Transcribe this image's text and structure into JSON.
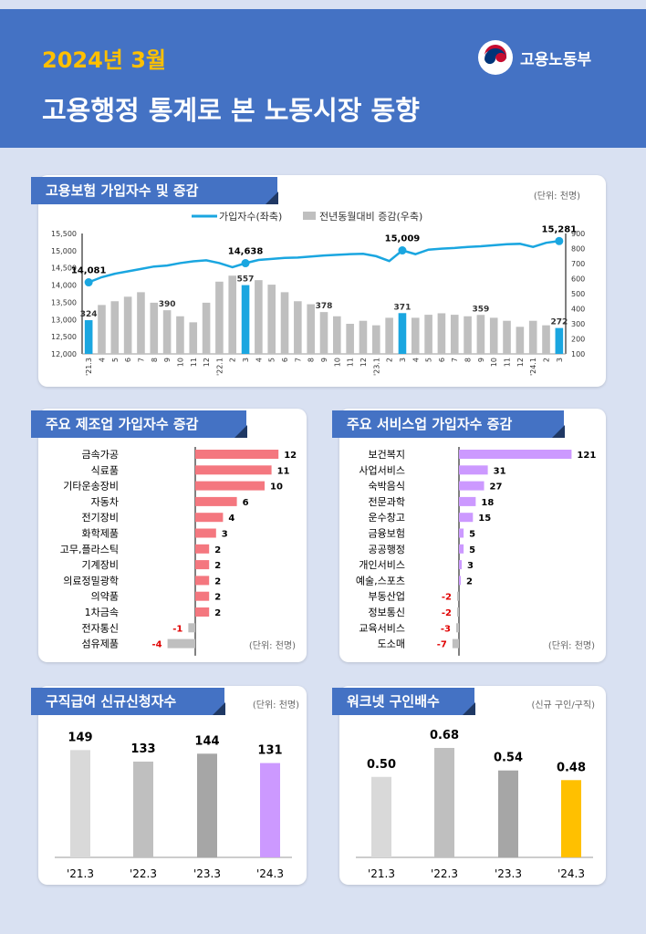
{
  "header": {
    "year_month": "2024년 3월",
    "title": "고용행정 통계로 본 노동시장 동향",
    "ministry": "고용노동부"
  },
  "colors": {
    "header_bg": "#4472c4",
    "accent_yellow": "#ffc000",
    "line_blue": "#1aa6e0",
    "bar_gray": "#bfbfbf",
    "bar_red": "#f4777f",
    "bar_purple": "#cc99ff"
  },
  "insurance": {
    "title": "고용보험 가입자수 및 증감",
    "unit": "(단위: 천명)",
    "legend_line": "가입자수(좌축)",
    "legend_bar": "전년동월대비 증감(우축)"
  },
  "manufacturing": {
    "title": "주요 제조업 가입자수 증감",
    "unit": "(단위: 천명)"
  },
  "services": {
    "title": "주요 서비스업 가입자수 증감",
    "unit": "(단위: 천명)"
  },
  "claims": {
    "title": "구직급여 신규신청자수",
    "unit": "(단위: 천명)"
  },
  "worknet": {
    "title": "워크넷 구인배수",
    "unit": "(신규 구인/구직)"
  },
  "chart_data": [
    {
      "type": "bar",
      "id": "insured",
      "title": "고용보험 가입자수 및 증감",
      "categories": [
        "'21.3",
        "4",
        "5",
        "6",
        "7",
        "8",
        "9",
        "10",
        "11",
        "12",
        "'22.1",
        "2",
        "3",
        "4",
        "5",
        "6",
        "7",
        "8",
        "9",
        "10",
        "11",
        "12",
        "'23.1",
        "2",
        "3",
        "4",
        "5",
        "6",
        "7",
        "8",
        "9",
        "10",
        "11",
        "12",
        "'24.1",
        "2",
        "3"
      ],
      "series": [
        {
          "name": "가입자수(좌축)",
          "kind": "line",
          "axis": "left",
          "values": [
            14081,
            14230,
            14330,
            14400,
            14470,
            14540,
            14570,
            14640,
            14690,
            14720,
            14640,
            14520,
            14638,
            14730,
            14760,
            14790,
            14800,
            14830,
            14860,
            14880,
            14900,
            14910,
            14840,
            14700,
            15009,
            14900,
            15030,
            15060,
            15080,
            15110,
            15130,
            15160,
            15190,
            15200,
            15110,
            15230,
            15281
          ]
        },
        {
          "name": "전년동월대비 증감(우축)",
          "kind": "bar",
          "axis": "right",
          "values": [
            324,
            425,
            450,
            480,
            510,
            440,
            390,
            350,
            310,
            440,
            580,
            620,
            557,
            590,
            560,
            510,
            450,
            430,
            378,
            350,
            300,
            320,
            290,
            340,
            371,
            340,
            360,
            370,
            360,
            350,
            359,
            340,
            320,
            280,
            320,
            290,
            272
          ],
          "highlight": [
            0,
            12,
            24,
            36
          ]
        }
      ],
      "labels_line": [
        {
          "i": 0,
          "text": "14,081"
        },
        {
          "i": 12,
          "text": "14,638"
        },
        {
          "i": 24,
          "text": "15,009"
        },
        {
          "i": 36,
          "text": "15,281"
        }
      ],
      "labels_bar": [
        {
          "i": 0,
          "text": "324"
        },
        {
          "i": 6,
          "text": "390"
        },
        {
          "i": 12,
          "text": "557"
        },
        {
          "i": 18,
          "text": "378"
        },
        {
          "i": 24,
          "text": "371"
        },
        {
          "i": 30,
          "text": "359"
        },
        {
          "i": 36,
          "text": "272"
        }
      ],
      "ylim_left": [
        12000,
        15500
      ],
      "yticks_left": [
        "12,000",
        "12,500",
        "13,000",
        "13,500",
        "14,000",
        "14,500",
        "15,000",
        "15,500"
      ],
      "ylim_right": [
        100,
        900
      ],
      "yticks_right": [
        "100",
        "200",
        "300",
        "400",
        "500",
        "600",
        "700",
        "800",
        "900"
      ]
    },
    {
      "type": "bar",
      "id": "manufacturing",
      "orientation": "horizontal",
      "categories": [
        "금속가공",
        "식료품",
        "기타운송장비",
        "자동차",
        "전기장비",
        "화학제품",
        "고무,플라스틱",
        "기계장비",
        "의료정밀광학",
        "의약품",
        "1차금속",
        "전자통신",
        "섬유제품"
      ],
      "values": [
        12,
        11,
        10,
        6,
        4,
        3,
        2,
        2,
        2,
        2,
        2,
        -1,
        -4
      ],
      "value_labels": [
        "12",
        "11",
        "10",
        "6",
        "4",
        "3",
        "2",
        "2",
        "2",
        "2",
        "2",
        "-1",
        "-4"
      ]
    },
    {
      "type": "bar",
      "id": "services",
      "orientation": "horizontal",
      "categories": [
        "보건복지",
        "사업서비스",
        "숙박음식",
        "전문과학",
        "운수창고",
        "금융보험",
        "공공행정",
        "개인서비스",
        "예술,스포츠",
        "부동산업",
        "정보통신",
        "교육서비스",
        "도소매"
      ],
      "values": [
        121,
        31,
        27,
        18,
        15,
        5,
        5,
        3,
        2,
        -2,
        -2,
        -3,
        -7
      ],
      "value_labels": [
        "121",
        "31",
        "27",
        "18",
        "15",
        "5",
        "5",
        "3",
        "2",
        "-2",
        "-2",
        "-3",
        "-7"
      ]
    },
    {
      "type": "bar",
      "id": "claims",
      "categories": [
        "'21.3",
        "'22.3",
        "'23.3",
        "'24.3"
      ],
      "values": [
        149,
        133,
        144,
        131
      ],
      "value_labels": [
        "149",
        "133",
        "144",
        "131"
      ],
      "colors": [
        "#d9d9d9",
        "#bfbfbf",
        "#a6a6a6",
        "#cc99ff"
      ]
    },
    {
      "type": "bar",
      "id": "worknet",
      "categories": [
        "'21.3",
        "'22.3",
        "'23.3",
        "'24.3"
      ],
      "values": [
        0.5,
        0.68,
        0.54,
        0.48
      ],
      "value_labels": [
        "0.50",
        "0.68",
        "0.54",
        "0.48"
      ],
      "colors": [
        "#d9d9d9",
        "#bfbfbf",
        "#a6a6a6",
        "#ffc000"
      ]
    }
  ]
}
